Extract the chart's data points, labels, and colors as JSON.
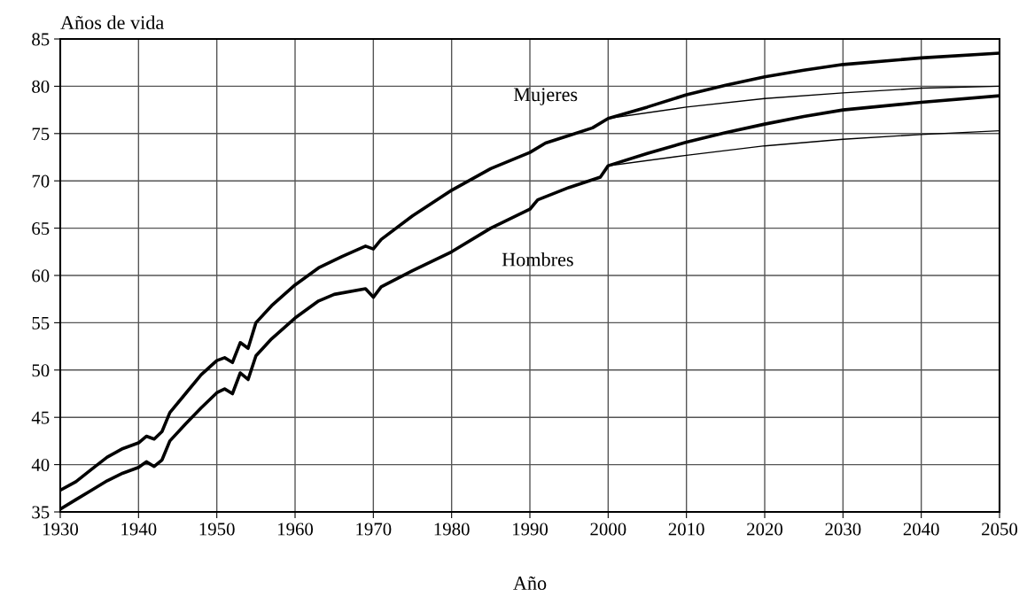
{
  "chart_data": {
    "type": "line",
    "ylabel": "Años de vida",
    "xlabel": "Año",
    "xlim": [
      1930,
      2050
    ],
    "ylim": [
      35,
      85
    ],
    "xticks": [
      1930,
      1940,
      1950,
      1960,
      1970,
      1980,
      1990,
      2000,
      2010,
      2020,
      2030,
      2040,
      2050
    ],
    "yticks": [
      35,
      40,
      45,
      50,
      55,
      60,
      65,
      70,
      75,
      80,
      85
    ],
    "grid": true,
    "legend": false,
    "marker": "none",
    "line_style": "solid",
    "series": [
      {
        "name": "Mujeres",
        "color": "#000000",
        "x": [
          1930,
          1932,
          1934,
          1936,
          1938,
          1940,
          1941,
          1942,
          1943,
          1944,
          1946,
          1948,
          1950,
          1951,
          1952,
          1953,
          1954,
          1955,
          1957,
          1960,
          1963,
          1966,
          1969,
          1970,
          1971,
          1975,
          1980,
          1985,
          1990,
          1992,
          1995,
          1998,
          2000,
          2005,
          2010,
          2015,
          2020,
          2025,
          2030,
          2040,
          2050
        ],
        "values": [
          37.3,
          38.2,
          39.5,
          40.8,
          41.7,
          42.3,
          43.0,
          42.7,
          43.5,
          45.5,
          47.5,
          49.5,
          51.0,
          51.3,
          50.8,
          52.9,
          52.3,
          55.0,
          56.8,
          59.0,
          60.8,
          62.0,
          63.1,
          62.8,
          63.8,
          66.3,
          69.0,
          71.3,
          73.0,
          74.0,
          74.8,
          75.6,
          76.6,
          77.8,
          79.1,
          80.1,
          81.0,
          81.7,
          82.3,
          83.0,
          83.5
        ]
      },
      {
        "color": "#000000",
        "x": [
          2000,
          2010,
          2020,
          2030,
          2040,
          2050
        ],
        "values": [
          76.6,
          77.8,
          78.7,
          79.3,
          79.8,
          80.0
        ]
      },
      {
        "name": "Hombres",
        "color": "#000000",
        "x": [
          1930,
          1932,
          1934,
          1936,
          1938,
          1940,
          1941,
          1942,
          1943,
          1944,
          1946,
          1948,
          1950,
          1951,
          1952,
          1953,
          1954,
          1955,
          1957,
          1960,
          1963,
          1965,
          1969,
          1970,
          1971,
          1975,
          1980,
          1985,
          1990,
          1991,
          1995,
          1999,
          2000,
          2005,
          2010,
          2015,
          2020,
          2025,
          2030,
          2040,
          2050
        ],
        "values": [
          35.3,
          36.3,
          37.3,
          38.3,
          39.1,
          39.7,
          40.3,
          39.8,
          40.5,
          42.5,
          44.3,
          46.0,
          47.6,
          48.0,
          47.5,
          49.7,
          49.0,
          51.5,
          53.3,
          55.5,
          57.3,
          58.0,
          58.6,
          57.7,
          58.8,
          60.5,
          62.5,
          65.0,
          67.0,
          68.0,
          69.3,
          70.4,
          71.6,
          72.9,
          74.1,
          75.1,
          76.0,
          76.8,
          77.5,
          78.3,
          79.0
        ]
      },
      {
        "color": "#000000",
        "x": [
          2000,
          2010,
          2020,
          2030,
          2040,
          2050
        ],
        "values": [
          71.6,
          72.7,
          73.7,
          74.4,
          74.9,
          75.3
        ]
      }
    ]
  }
}
